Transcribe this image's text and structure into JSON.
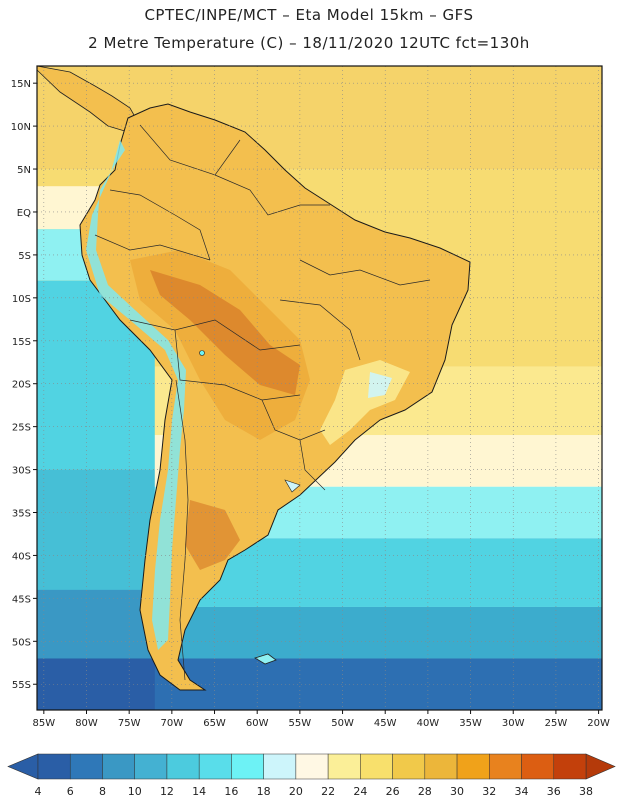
{
  "header": {
    "line1": "CPTEC/INPE/MCT –  Eta Model 15km – GFS",
    "line2": "2 Metre Temperature (C) – 18/11/2020 12UTC fct=130h"
  },
  "map": {
    "lat_labels": [
      "15N",
      "10N",
      "5N",
      "EQ",
      "5S",
      "10S",
      "15S",
      "20S",
      "25S",
      "30S",
      "35S",
      "40S",
      "45S",
      "50S",
      "55S"
    ],
    "lon_labels": [
      "85W",
      "80W",
      "75W",
      "70W",
      "65W",
      "60W",
      "55W",
      "50W",
      "45W",
      "40W",
      "35W",
      "30W",
      "25W",
      "20W"
    ],
    "ocean_temperature_bands": [
      {
        "latitude_from": 17,
        "latitude_to": 5,
        "value_c": 28,
        "color": "#f5d36a"
      },
      {
        "latitude_from": 5,
        "latitude_to": -18,
        "value_c": 27,
        "color": "#f7dc72"
      },
      {
        "latitude_from": -18,
        "latitude_to": -26,
        "value_c": 25,
        "color": "#fbe98f"
      },
      {
        "latitude_from": -26,
        "latitude_to": -32,
        "value_c": 22,
        "color": "#fff6d2"
      },
      {
        "latitude_from": -32,
        "latitude_to": -38,
        "value_c": 18,
        "color": "#8ff1f2"
      },
      {
        "latitude_from": -38,
        "latitude_to": -46,
        "value_c": 15,
        "color": "#51d3e2"
      },
      {
        "latitude_from": -46,
        "latitude_to": -52,
        "value_c": 10,
        "color": "#3caccd"
      },
      {
        "latitude_from": -52,
        "latitude_to": -58,
        "value_c": 7,
        "color": "#2d6fb2"
      }
    ],
    "pacific_temperature_bands": [
      {
        "latitude_from": 3,
        "latitude_to": -2,
        "value_c": 22,
        "color": "#fff6d2"
      },
      {
        "latitude_from": -2,
        "latitude_to": -8,
        "value_c": 18,
        "color": "#8ff1f2"
      },
      {
        "latitude_from": -8,
        "latitude_to": -30,
        "value_c": 15,
        "color": "#51d3e2"
      },
      {
        "latitude_from": -30,
        "latitude_to": -44,
        "value_c": 13,
        "color": "#46bfd6"
      },
      {
        "latitude_from": -44,
        "latitude_to": -52,
        "value_c": 9,
        "color": "#3a98c4"
      },
      {
        "latitude_from": -52,
        "latitude_to": -58,
        "value_c": 6,
        "color": "#2a5ea6"
      }
    ],
    "land_color": "#f3bf4e",
    "hot_core_color": "#cc6a1c",
    "andes_color": "#7fe7f0"
  },
  "colorbar": {
    "values": [
      "4",
      "6",
      "8",
      "10",
      "12",
      "14",
      "16",
      "18",
      "20",
      "22",
      "24",
      "26",
      "28",
      "30",
      "32",
      "34",
      "36",
      "38"
    ],
    "colors": [
      "#2a5ea6",
      "#2f78b8",
      "#3a98c4",
      "#44b1d2",
      "#4ccbde",
      "#59ddea",
      "#6df2f5",
      "#cdf5fb",
      "#fff8e4",
      "#fbef98",
      "#f8e06c",
      "#f1c94a",
      "#ecb63a",
      "#f0a21a",
      "#e8821e",
      "#dc5e12",
      "#c3400b"
    ],
    "low_color": "#2a5ea6",
    "high_color": "#b53a0a"
  }
}
